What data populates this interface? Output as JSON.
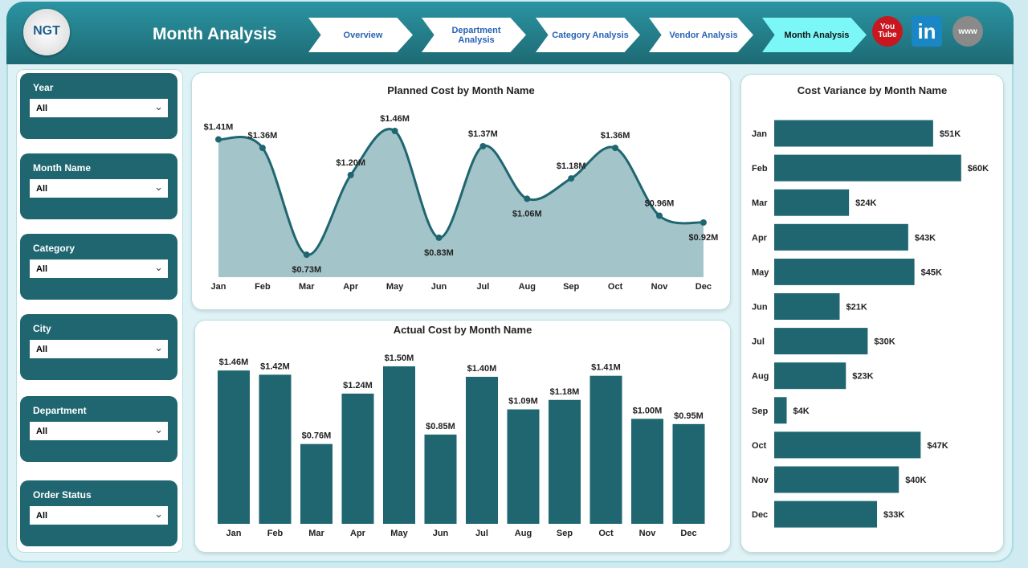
{
  "header": {
    "logo_text": "NGT",
    "title": "Month Analysis",
    "nav": [
      {
        "label": "Overview"
      },
      {
        "label": "Department Analysis"
      },
      {
        "label": "Category Analysis"
      },
      {
        "label": "Vendor Analysis"
      },
      {
        "label": "Month Analysis",
        "active": true
      }
    ],
    "social": [
      {
        "icon": "youtube-icon",
        "label": "You Tube",
        "color": "#c8171e"
      },
      {
        "icon": "linkedin-icon",
        "label": "in",
        "color": "#1b86c4"
      },
      {
        "icon": "globe-icon",
        "label": "www",
        "color": "#8a8a8a"
      }
    ]
  },
  "filters": [
    {
      "label": "Year",
      "value": "All"
    },
    {
      "label": "Month Name",
      "value": "All"
    },
    {
      "label": "Category",
      "value": "All"
    },
    {
      "label": "City",
      "value": "All"
    },
    {
      "label": "Department",
      "value": "All"
    },
    {
      "label": "Order Status",
      "value": "All"
    }
  ],
  "colors": {
    "bar": "#1f6670",
    "area": "#a3c4c9",
    "line": "#1f6670"
  },
  "chart_data": [
    {
      "type": "area",
      "title": "Planned Cost by Month Name",
      "categories": [
        "Jan",
        "Feb",
        "Mar",
        "Apr",
        "May",
        "Jun",
        "Jul",
        "Aug",
        "Sep",
        "Oct",
        "Nov",
        "Dec"
      ],
      "values": [
        1.41,
        1.36,
        0.73,
        1.2,
        1.46,
        0.83,
        1.37,
        1.06,
        1.18,
        1.36,
        0.96,
        0.92
      ],
      "labels": [
        "$1.41M",
        "$1.36M",
        "$0.73M",
        "$1.20M",
        "$1.46M",
        "$0.83M",
        "$1.37M",
        "$1.06M",
        "$1.18M",
        "$1.36M",
        "$0.96M",
        "$0.92M"
      ]
    },
    {
      "type": "bar",
      "title": "Actual Cost by Month Name",
      "categories": [
        "Jan",
        "Feb",
        "Mar",
        "Apr",
        "May",
        "Jun",
        "Jul",
        "Aug",
        "Sep",
        "Oct",
        "Nov",
        "Dec"
      ],
      "values": [
        1.46,
        1.42,
        0.76,
        1.24,
        1.5,
        0.85,
        1.4,
        1.09,
        1.18,
        1.41,
        1.0,
        0.95
      ],
      "labels": [
        "$1.46M",
        "$1.42M",
        "$0.76M",
        "$1.24M",
        "$1.50M",
        "$0.85M",
        "$1.40M",
        "$1.09M",
        "$1.18M",
        "$1.41M",
        "$1.00M",
        "$0.95M"
      ]
    },
    {
      "type": "bar",
      "orientation": "horizontal",
      "title": "Cost Variance by Month Name",
      "categories": [
        "Jan",
        "Feb",
        "Mar",
        "Apr",
        "May",
        "Jun",
        "Jul",
        "Aug",
        "Sep",
        "Oct",
        "Nov",
        "Dec"
      ],
      "values": [
        51,
        60,
        24,
        43,
        45,
        21,
        30,
        23,
        4,
        47,
        40,
        33
      ],
      "labels": [
        "$51K",
        "$60K",
        "$24K",
        "$43K",
        "$45K",
        "$21K",
        "$30K",
        "$23K",
        "$4K",
        "$47K",
        "$40K",
        "$33K"
      ]
    }
  ]
}
